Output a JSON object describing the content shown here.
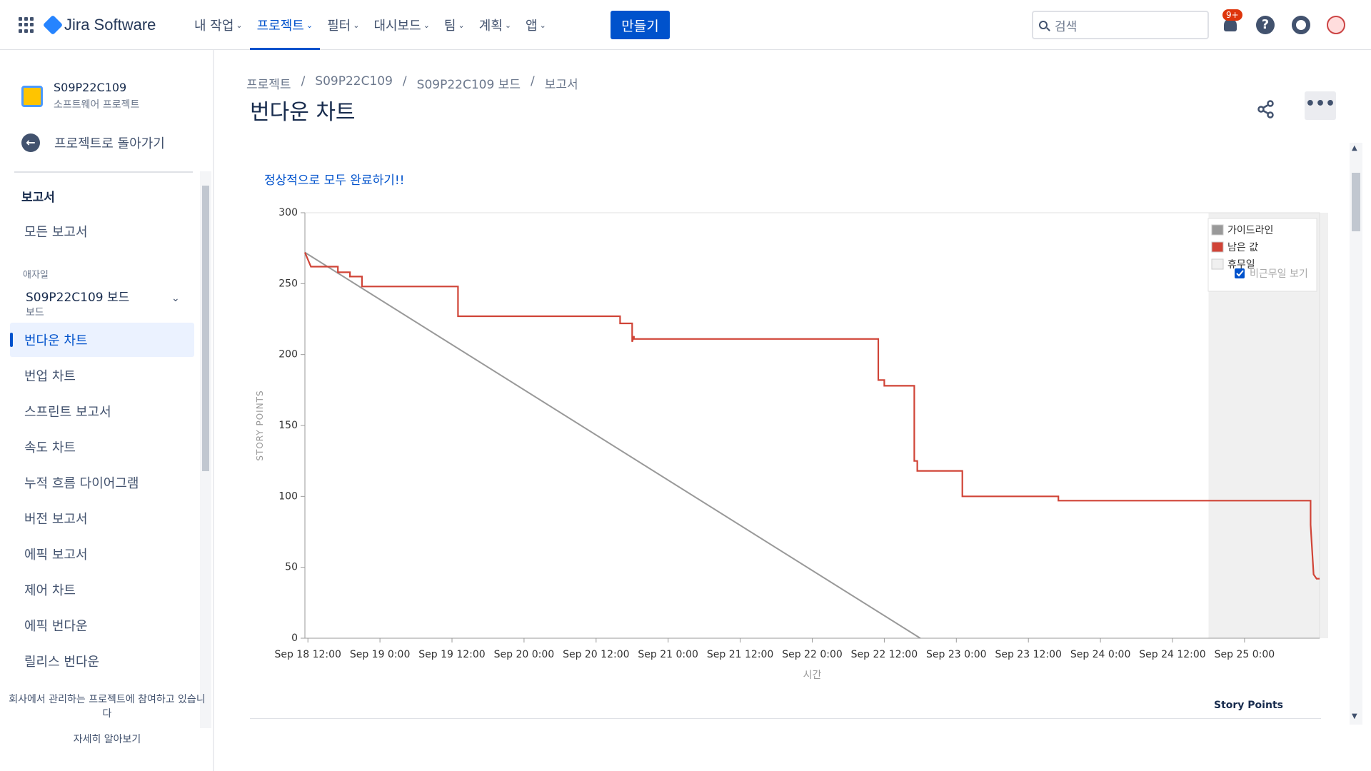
{
  "app": {
    "name": "Jira Software"
  },
  "nav": {
    "items": [
      {
        "label": "내 작업"
      },
      {
        "label": "프로젝트",
        "active": true
      },
      {
        "label": "필터"
      },
      {
        "label": "대시보드"
      },
      {
        "label": "팀"
      },
      {
        "label": "계획"
      },
      {
        "label": "앱"
      }
    ],
    "create_label": "만들기",
    "search_placeholder": "검색",
    "notification_badge": "9+",
    "accent": "#0052cc"
  },
  "sidebar": {
    "project_name": "S09P22C109",
    "project_type": "소프트웨어 프로젝트",
    "back_label": "프로젝트로 돌아가기",
    "heading": "보고서",
    "all_reports": "모든 보고서",
    "agile_label": "애자일",
    "board_name": "S09P22C109 보드",
    "board_sub": "보드",
    "items": [
      {
        "label": "번다운 차트",
        "active": true
      },
      {
        "label": "번업 차트"
      },
      {
        "label": "스프린트 보고서"
      },
      {
        "label": "속도 차트"
      },
      {
        "label": "누적 흐름 다이어그램"
      },
      {
        "label": "버전 보고서"
      },
      {
        "label": "에픽 보고서"
      },
      {
        "label": "제어 차트"
      },
      {
        "label": "에픽 번다운"
      },
      {
        "label": "릴리스 번다운"
      }
    ],
    "footer_text": "회사에서 관리하는 프로젝트에 참여하고 있습니다",
    "learn_more": "자세히 알아보기"
  },
  "breadcrumb": [
    "프로젝트",
    "/",
    "S09P22C109",
    "/",
    "S09P22C109 보드",
    "/",
    "보고서"
  ],
  "page_title": "번다운 차트",
  "sprint_goal": "정상적으로 모두 완료하기!!",
  "table_header": "Story Points",
  "chart_data": {
    "type": "line",
    "ylabel": "STORY POINTS",
    "xlabel": "시간",
    "ylim": [
      0,
      300
    ],
    "yticks": [
      0,
      50,
      100,
      150,
      200,
      250,
      300
    ],
    "x_ticks": [
      "Sep 18 12:00",
      "Sep 19 0:00",
      "Sep 19 12:00",
      "Sep 20 0:00",
      "Sep 20 12:00",
      "Sep 21 0:00",
      "Sep 21 12:00",
      "Sep 22 0:00",
      "Sep 22 12:00",
      "Sep 23 0:00",
      "Sep 23 12:00",
      "Sep 24 0:00",
      "Sep 24 12:00",
      "Sep 25 0:00"
    ],
    "x_unit": "hours since Sep 18 12:00",
    "xlim": [
      -0.5,
      168.5
    ],
    "non_working": [
      [
        150,
        198
      ]
    ],
    "legend": {
      "position": "top-right",
      "entries": [
        {
          "label": "가이드라인",
          "color": "#999999"
        },
        {
          "label": "남은 값",
          "color": "#d04437"
        },
        {
          "label": "휴무일",
          "color": "#f0f0f0"
        }
      ],
      "checkbox_label": "비근무일 보기",
      "checkbox_checked": true
    },
    "series": [
      {
        "name": "가이드라인",
        "color": "#999999",
        "points": [
          [
            -0.5,
            272
          ],
          [
            102,
            0
          ]
        ]
      },
      {
        "name": "남은 값",
        "color": "#d04437",
        "points": [
          [
            -0.5,
            272
          ],
          [
            0.5,
            262
          ],
          [
            5,
            262
          ],
          [
            5,
            258
          ],
          [
            7,
            258
          ],
          [
            7,
            255
          ],
          [
            9,
            255
          ],
          [
            9,
            248
          ],
          [
            25,
            248
          ],
          [
            25,
            227
          ],
          [
            52,
            227
          ],
          [
            52,
            222
          ],
          [
            54,
            222
          ],
          [
            54,
            209
          ],
          [
            54.3,
            213
          ],
          [
            54.3,
            211
          ],
          [
            95,
            211
          ],
          [
            95,
            182
          ],
          [
            96,
            182
          ],
          [
            96,
            178
          ],
          [
            101,
            178
          ],
          [
            101,
            125
          ],
          [
            101.5,
            125
          ],
          [
            101.5,
            118
          ],
          [
            109,
            118
          ],
          [
            109,
            100
          ],
          [
            125,
            100
          ],
          [
            125,
            97
          ],
          [
            167,
            97
          ],
          [
            167,
            80
          ],
          [
            167.5,
            45
          ],
          [
            168,
            42
          ],
          [
            168.5,
            42
          ]
        ]
      }
    ]
  }
}
